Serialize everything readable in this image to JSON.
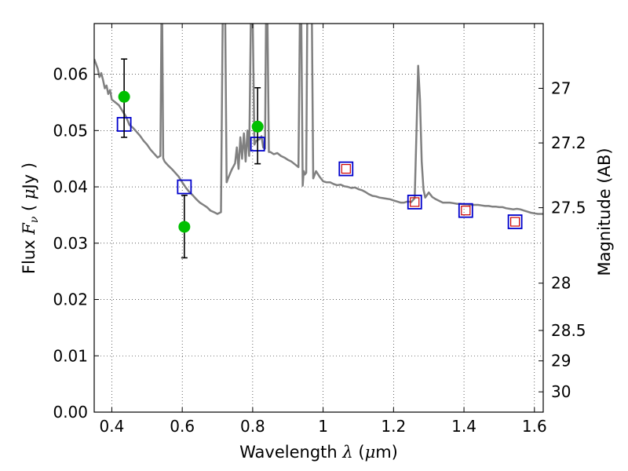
{
  "chart_data": {
    "type": "scatter",
    "xlabel": "Wavelength  λ (μm)",
    "ylabel": "Flux  F_ν  ( μJy )",
    "ylabel_parts": {
      "pre": "Flux  ",
      "sym": "F",
      "sub": "ν",
      "mid": "  ( ",
      "mu": "μ",
      "post": "Jy )"
    },
    "xlabel_parts": {
      "pre": "Wavelength  ",
      "sym": "λ",
      "mid": " (",
      "mu": "μ",
      "post": "m)"
    },
    "y2label": "Magnitude (AB)",
    "xlim": [
      0.35,
      1.625
    ],
    "ylim": [
      0,
      0.069
    ],
    "grid": true,
    "x_ticks": [
      {
        "v": 0.4,
        "label": "0.4"
      },
      {
        "v": 0.6,
        "label": "0.6"
      },
      {
        "v": 0.8,
        "label": "0.8"
      },
      {
        "v": 1.0,
        "label": "1"
      },
      {
        "v": 1.2,
        "label": "1.2"
      },
      {
        "v": 1.4,
        "label": "1.4"
      },
      {
        "v": 1.6,
        "label": "1.6"
      }
    ],
    "y_ticks": [
      {
        "v": 0.0,
        "label": "0.00"
      },
      {
        "v": 0.01,
        "label": "0.01"
      },
      {
        "v": 0.02,
        "label": "0.02"
      },
      {
        "v": 0.03,
        "label": "0.03"
      },
      {
        "v": 0.04,
        "label": "0.04"
      },
      {
        "v": 0.05,
        "label": "0.05"
      },
      {
        "v": 0.06,
        "label": "0.06"
      }
    ],
    "y2_ticks": [
      {
        "flux": 0.0575,
        "label": "27"
      },
      {
        "flux": 0.0478,
        "label": "27.2"
      },
      {
        "flux": 0.0363,
        "label": "27.5"
      },
      {
        "flux": 0.0229,
        "label": "28"
      },
      {
        "flux": 0.0145,
        "label": "28.5"
      },
      {
        "flux": 0.0091,
        "label": "29"
      },
      {
        "flux": 0.0036,
        "label": "30"
      }
    ],
    "colors": {
      "model": "#808080",
      "observed": "#00c000",
      "model_phot": "#0000cc",
      "model_phot_inner": "#cc0000",
      "errorbar": "#000000"
    },
    "series": [
      {
        "kind": "line",
        "points": [
          [
            0.35,
            0.0627
          ],
          [
            0.36,
            0.061
          ],
          [
            0.365,
            0.0595
          ],
          [
            0.37,
            0.0602
          ],
          [
            0.375,
            0.059
          ],
          [
            0.38,
            0.0575
          ],
          [
            0.385,
            0.058
          ],
          [
            0.39,
            0.0565
          ],
          [
            0.395,
            0.0572
          ],
          [
            0.4,
            0.0555
          ],
          [
            0.41,
            0.055
          ],
          [
            0.42,
            0.0545
          ],
          [
            0.43,
            0.0535
          ],
          [
            0.44,
            0.0525
          ],
          [
            0.45,
            0.051
          ],
          [
            0.46,
            0.0505
          ],
          [
            0.47,
            0.0498
          ],
          [
            0.48,
            0.0491
          ],
          [
            0.49,
            0.0482
          ],
          [
            0.5,
            0.0475
          ],
          [
            0.51,
            0.0466
          ],
          [
            0.52,
            0.0459
          ],
          [
            0.53,
            0.0452
          ],
          [
            0.538,
            0.0455
          ],
          [
            0.541,
            0.07
          ],
          [
            0.543,
            0.07
          ],
          [
            0.546,
            0.0451
          ],
          [
            0.55,
            0.0445
          ],
          [
            0.56,
            0.0438
          ],
          [
            0.57,
            0.0432
          ],
          [
            0.58,
            0.0425
          ],
          [
            0.59,
            0.0418
          ],
          [
            0.6,
            0.0408
          ],
          [
            0.61,
            0.0399
          ],
          [
            0.62,
            0.0391
          ],
          [
            0.63,
            0.0385
          ],
          [
            0.64,
            0.0378
          ],
          [
            0.65,
            0.0372
          ],
          [
            0.66,
            0.0368
          ],
          [
            0.67,
            0.0364
          ],
          [
            0.68,
            0.0358
          ],
          [
            0.69,
            0.0355
          ],
          [
            0.7,
            0.0352
          ],
          [
            0.71,
            0.0355
          ],
          [
            0.715,
            0.07
          ],
          [
            0.722,
            0.07
          ],
          [
            0.726,
            0.0408
          ],
          [
            0.73,
            0.0415
          ],
          [
            0.74,
            0.043
          ],
          [
            0.75,
            0.0442
          ],
          [
            0.755,
            0.047
          ],
          [
            0.76,
            0.0432
          ],
          [
            0.765,
            0.0488
          ],
          [
            0.77,
            0.045
          ],
          [
            0.775,
            0.0495
          ],
          [
            0.78,
            0.0445
          ],
          [
            0.785,
            0.05
          ],
          [
            0.79,
            0.0455
          ],
          [
            0.795,
            0.07
          ],
          [
            0.8,
            0.07
          ],
          [
            0.805,
            0.0475
          ],
          [
            0.81,
            0.0482
          ],
          [
            0.82,
            0.0485
          ],
          [
            0.825,
            0.049
          ],
          [
            0.83,
            0.047
          ],
          [
            0.835,
            0.0468
          ],
          [
            0.838,
            0.07
          ],
          [
            0.842,
            0.07
          ],
          [
            0.846,
            0.0462
          ],
          [
            0.85,
            0.0462
          ],
          [
            0.86,
            0.0458
          ],
          [
            0.87,
            0.046
          ],
          [
            0.88,
            0.0455
          ],
          [
            0.89,
            0.0452
          ],
          [
            0.9,
            0.0448
          ],
          [
            0.91,
            0.0445
          ],
          [
            0.92,
            0.044
          ],
          [
            0.93,
            0.0435
          ],
          [
            0.934,
            0.07
          ],
          [
            0.938,
            0.07
          ],
          [
            0.942,
            0.0402
          ],
          [
            0.945,
            0.0428
          ],
          [
            0.948,
            0.0422
          ],
          [
            0.952,
            0.0425
          ],
          [
            0.955,
            0.07
          ],
          [
            0.958,
            0.07
          ],
          [
            0.962,
            0.07
          ],
          [
            0.965,
            0.07
          ],
          [
            0.968,
            0.07
          ],
          [
            0.972,
            0.0415
          ],
          [
            0.98,
            0.0428
          ],
          [
            0.99,
            0.0418
          ],
          [
            1.0,
            0.041
          ],
          [
            1.01,
            0.0408
          ],
          [
            1.02,
            0.0408
          ],
          [
            1.03,
            0.0405
          ],
          [
            1.04,
            0.0403
          ],
          [
            1.05,
            0.0404
          ],
          [
            1.06,
            0.0401
          ],
          [
            1.07,
            0.04
          ],
          [
            1.08,
            0.0398
          ],
          [
            1.09,
            0.0399
          ],
          [
            1.1,
            0.0396
          ],
          [
            1.11,
            0.0394
          ],
          [
            1.12,
            0.0391
          ],
          [
            1.13,
            0.0387
          ],
          [
            1.14,
            0.0384
          ],
          [
            1.15,
            0.0383
          ],
          [
            1.16,
            0.0381
          ],
          [
            1.17,
            0.038
          ],
          [
            1.18,
            0.0379
          ],
          [
            1.19,
            0.0378
          ],
          [
            1.2,
            0.0376
          ],
          [
            1.21,
            0.0374
          ],
          [
            1.22,
            0.0372
          ],
          [
            1.23,
            0.0372
          ],
          [
            1.24,
            0.0374
          ],
          [
            1.25,
            0.0373
          ],
          [
            1.26,
            0.038
          ],
          [
            1.265,
            0.0495
          ],
          [
            1.27,
            0.0615
          ],
          [
            1.275,
            0.0555
          ],
          [
            1.28,
            0.0445
          ],
          [
            1.285,
            0.0395
          ],
          [
            1.29,
            0.0381
          ],
          [
            1.3,
            0.039
          ],
          [
            1.31,
            0.0382
          ],
          [
            1.32,
            0.0378
          ],
          [
            1.33,
            0.0375
          ],
          [
            1.34,
            0.0372
          ],
          [
            1.35,
            0.0372
          ],
          [
            1.36,
            0.0372
          ],
          [
            1.37,
            0.0371
          ],
          [
            1.38,
            0.037
          ],
          [
            1.39,
            0.037
          ],
          [
            1.4,
            0.0369
          ],
          [
            1.41,
            0.0369
          ],
          [
            1.42,
            0.0368
          ],
          [
            1.43,
            0.0368
          ],
          [
            1.44,
            0.0368
          ],
          [
            1.45,
            0.0367
          ],
          [
            1.46,
            0.0366
          ],
          [
            1.47,
            0.0366
          ],
          [
            1.48,
            0.0365
          ],
          [
            1.49,
            0.0365
          ],
          [
            1.5,
            0.0364
          ],
          [
            1.51,
            0.0364
          ],
          [
            1.52,
            0.0362
          ],
          [
            1.53,
            0.0361
          ],
          [
            1.54,
            0.036
          ],
          [
            1.55,
            0.0361
          ],
          [
            1.56,
            0.036
          ],
          [
            1.57,
            0.0358
          ],
          [
            1.58,
            0.0356
          ],
          [
            1.59,
            0.0354
          ],
          [
            1.6,
            0.0353
          ],
          [
            1.61,
            0.0352
          ],
          [
            1.625,
            0.0352
          ]
        ]
      },
      {
        "kind": "observed",
        "points": [
          {
            "x": 0.435,
            "y": 0.056,
            "err_lo": 0.0488,
            "err_hi": 0.0627
          },
          {
            "x": 0.606,
            "y": 0.0329,
            "err_lo": 0.0274,
            "err_hi": 0.0385
          },
          {
            "x": 0.814,
            "y": 0.0507,
            "err_lo": 0.0441,
            "err_hi": 0.0576
          }
        ]
      },
      {
        "kind": "model_phot",
        "points": [
          {
            "x": 0.435,
            "y": 0.0511,
            "inner": false
          },
          {
            "x": 0.606,
            "y": 0.04,
            "inner": false
          },
          {
            "x": 0.814,
            "y": 0.0476,
            "inner": false
          },
          {
            "x": 1.065,
            "y": 0.0432,
            "inner": true
          },
          {
            "x": 1.26,
            "y": 0.0373,
            "inner": true
          },
          {
            "x": 1.405,
            "y": 0.0358,
            "inner": true
          },
          {
            "x": 1.545,
            "y": 0.0338,
            "inner": true
          }
        ]
      }
    ]
  }
}
